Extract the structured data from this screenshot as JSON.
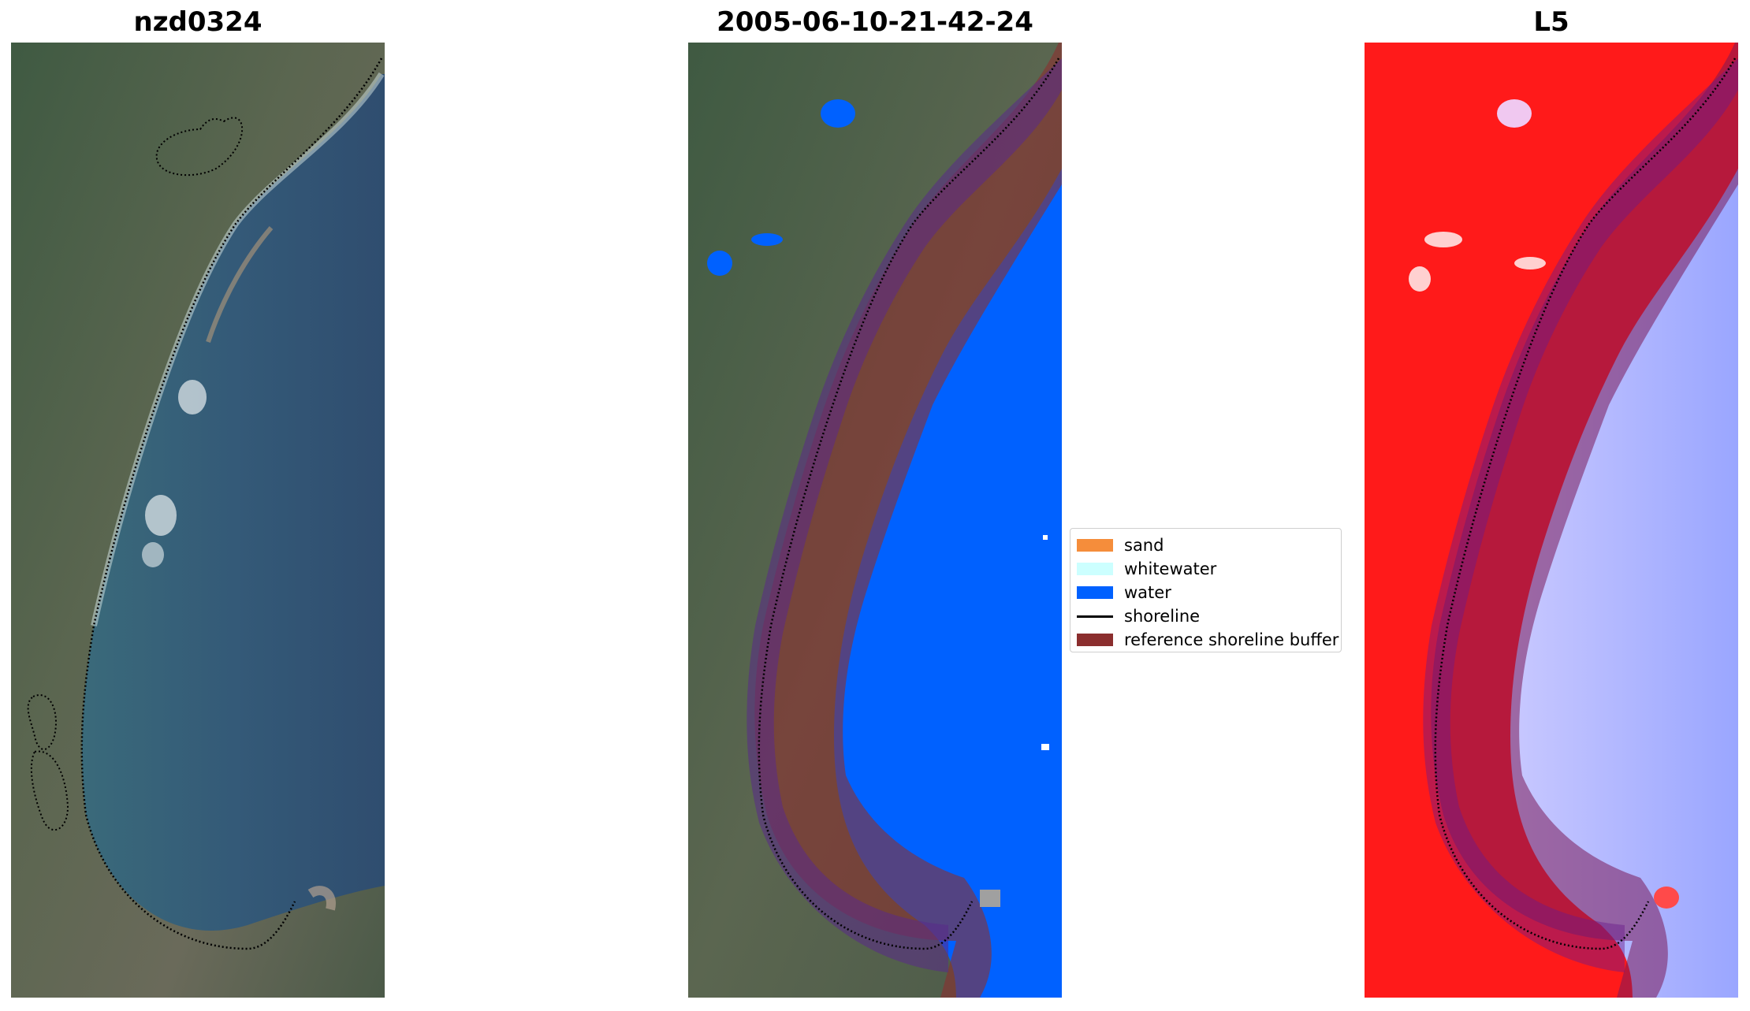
{
  "panels": [
    {
      "title": "nzd0324"
    },
    {
      "title": "2005-06-10-21-42-24"
    },
    {
      "title": "L5"
    }
  ],
  "legend": {
    "items": [
      {
        "label": "sand",
        "color": "#f58d3b",
        "kind": "patch"
      },
      {
        "label": "whitewater",
        "color": "#ccffff",
        "kind": "patch"
      },
      {
        "label": "water",
        "color": "#0061ff",
        "kind": "patch"
      },
      {
        "label": "shoreline",
        "color": "#000000",
        "kind": "line"
      },
      {
        "label": "reference shoreline buffer",
        "color": "#8b2e2e",
        "kind": "patch"
      }
    ]
  },
  "colors": {
    "land": "#4d5c45",
    "ocean": "#385873",
    "buffer": "#8b2e2e",
    "water_class": "#0061ff",
    "index_land": "#ff1a1a",
    "index_water": "#b8c0ff"
  }
}
